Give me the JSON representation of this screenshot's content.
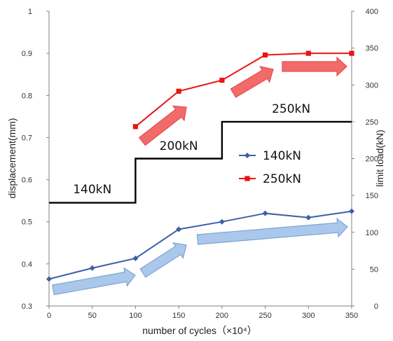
{
  "chart_data": {
    "type": "line",
    "xlabel": "number of cycles（×10⁴）",
    "ylabel_left": "displacement(mm)",
    "ylabel_right": "limit load(kN)",
    "xlim": [
      0,
      350
    ],
    "ylim_left": [
      0.3,
      1
    ],
    "ylim_right": [
      0,
      400
    ],
    "x_ticks": [
      "0",
      "50",
      "100",
      "150",
      "200",
      "250",
      "300",
      "350"
    ],
    "y_left_ticks": [
      "0.3",
      "0.4",
      "0.5",
      "0.6",
      "0.7",
      "0.8",
      "0.9",
      "1"
    ],
    "y_right_ticks": [
      "0",
      "50",
      "100",
      "150",
      "200",
      "250",
      "300",
      "350",
      "400"
    ],
    "grid": false,
    "legend_position": "center-right",
    "series": [
      {
        "name": "140kN",
        "axis": "left",
        "color": "#3d5fa8",
        "marker": "diamond",
        "x": [
          0,
          50,
          100,
          150,
          200,
          250,
          300,
          350
        ],
        "y": [
          0.364,
          0.39,
          0.413,
          0.482,
          0.5,
          0.52,
          0.51,
          0.525
        ]
      },
      {
        "name": "250kN",
        "axis": "left",
        "color": "#ee1111",
        "marker": "square",
        "x": [
          100,
          150,
          200,
          250,
          300,
          350
        ],
        "y": [
          0.726,
          0.81,
          0.836,
          0.896,
          0.9,
          0.9
        ]
      }
    ],
    "load_step": {
      "axis": "right",
      "color": "#000000",
      "x": [
        0,
        100,
        100,
        200,
        200,
        350
      ],
      "y": [
        140,
        140,
        200,
        200,
        250,
        250
      ],
      "labels": [
        {
          "text": "140kN",
          "x": 50,
          "y": 153
        },
        {
          "text": "200kN",
          "x": 150,
          "y": 212
        },
        {
          "text": "250kN",
          "x": 280,
          "y": 262
        }
      ]
    },
    "trend_arrows": {
      "blue": {
        "fill": "#a9c8ec",
        "stroke": "#7fa3cf"
      },
      "red": {
        "fill": "#f26a6a",
        "stroke": "#e05050"
      }
    }
  }
}
